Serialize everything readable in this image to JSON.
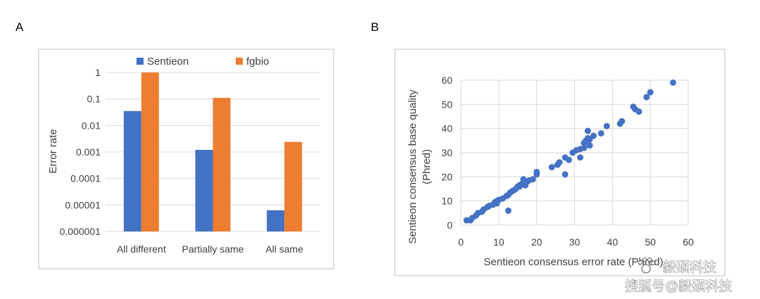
{
  "panel_labels": {
    "a": "A",
    "b": "B"
  },
  "watermark": {
    "line1": "毅硕科技",
    "line2": "搜狐号@毅硕科技"
  },
  "colors": {
    "sentieon": "#4472C4",
    "fgbio": "#ED7D31",
    "scatter": "#4472C4",
    "grid": "#D9D9D9",
    "border": "#BFBFBF"
  },
  "chart_data": [
    {
      "type": "bar",
      "title": "",
      "xlabel": "",
      "ylabel": "Error rate",
      "yscale": "log",
      "ylim": [
        1e-06,
        1
      ],
      "yticks": [
        1,
        0.1,
        0.01,
        0.001,
        0.0001,
        1e-05,
        1e-06
      ],
      "ytick_labels": [
        "1",
        "0.1",
        "0.01",
        "0.001",
        "0.0001",
        "0.00001",
        "0.000001"
      ],
      "categories": [
        "All different",
        "Partially same",
        "All same"
      ],
      "legend_position": "top",
      "series": [
        {
          "name": "Sentieon",
          "values": [
            0.035,
            0.0012,
            6.3e-06
          ]
        },
        {
          "name": "fgbio",
          "values": [
            1,
            0.11,
            0.0024
          ]
        }
      ]
    },
    {
      "type": "scatter",
      "title": "",
      "xlabel": "Sentieon consensus error rate (Phred)",
      "ylabel_lines": [
        "Sentieon consensus base quality",
        "(Phred)"
      ],
      "xlim": [
        0,
        60
      ],
      "ylim": [
        0,
        60
      ],
      "xticks": [
        0,
        10,
        20,
        30,
        40,
        50,
        60
      ],
      "yticks": [
        0,
        10,
        20,
        30,
        40,
        50,
        60
      ],
      "grid": true,
      "points": [
        [
          1.5,
          2
        ],
        [
          2.5,
          2
        ],
        [
          3,
          3
        ],
        [
          4,
          4
        ],
        [
          4.5,
          5
        ],
        [
          5.5,
          5.5
        ],
        [
          6,
          6.5
        ],
        [
          7,
          7.5
        ],
        [
          7.5,
          8
        ],
        [
          8.5,
          8.5
        ],
        [
          9,
          9.5
        ],
        [
          9.5,
          10
        ],
        [
          10,
          10.5
        ],
        [
          11,
          11
        ],
        [
          9.5,
          9
        ],
        [
          12,
          12
        ],
        [
          12.5,
          12.5
        ],
        [
          13,
          13.5
        ],
        [
          13.5,
          14
        ],
        [
          14,
          14.5
        ],
        [
          14.5,
          15
        ],
        [
          15,
          16
        ],
        [
          15.5,
          16.5
        ],
        [
          16,
          17
        ],
        [
          16.5,
          17.5
        ],
        [
          17,
          18
        ],
        [
          17.5,
          18
        ],
        [
          18,
          18.5
        ],
        [
          19,
          19
        ],
        [
          16.5,
          19
        ],
        [
          20,
          21
        ],
        [
          20,
          22
        ],
        [
          12.5,
          6
        ],
        [
          15.5,
          16
        ],
        [
          17,
          16.5
        ],
        [
          24,
          24
        ],
        [
          25.5,
          25
        ],
        [
          26,
          26
        ],
        [
          27.5,
          28
        ],
        [
          28.5,
          27
        ],
        [
          27.5,
          21
        ],
        [
          29.5,
          30
        ],
        [
          30.5,
          31
        ],
        [
          31.5,
          31.5
        ],
        [
          31.5,
          28
        ],
        [
          32.5,
          32
        ],
        [
          32.5,
          34
        ],
        [
          33,
          35
        ],
        [
          33.5,
          36
        ],
        [
          34,
          35.5
        ],
        [
          33.5,
          39
        ],
        [
          34,
          33
        ],
        [
          35,
          37
        ],
        [
          37,
          38
        ],
        [
          38.5,
          41
        ],
        [
          42,
          42
        ],
        [
          42.5,
          43
        ],
        [
          45.5,
          49
        ],
        [
          46,
          48
        ],
        [
          47,
          47
        ],
        [
          49,
          53
        ],
        [
          50,
          55
        ],
        [
          56,
          59
        ]
      ]
    }
  ]
}
